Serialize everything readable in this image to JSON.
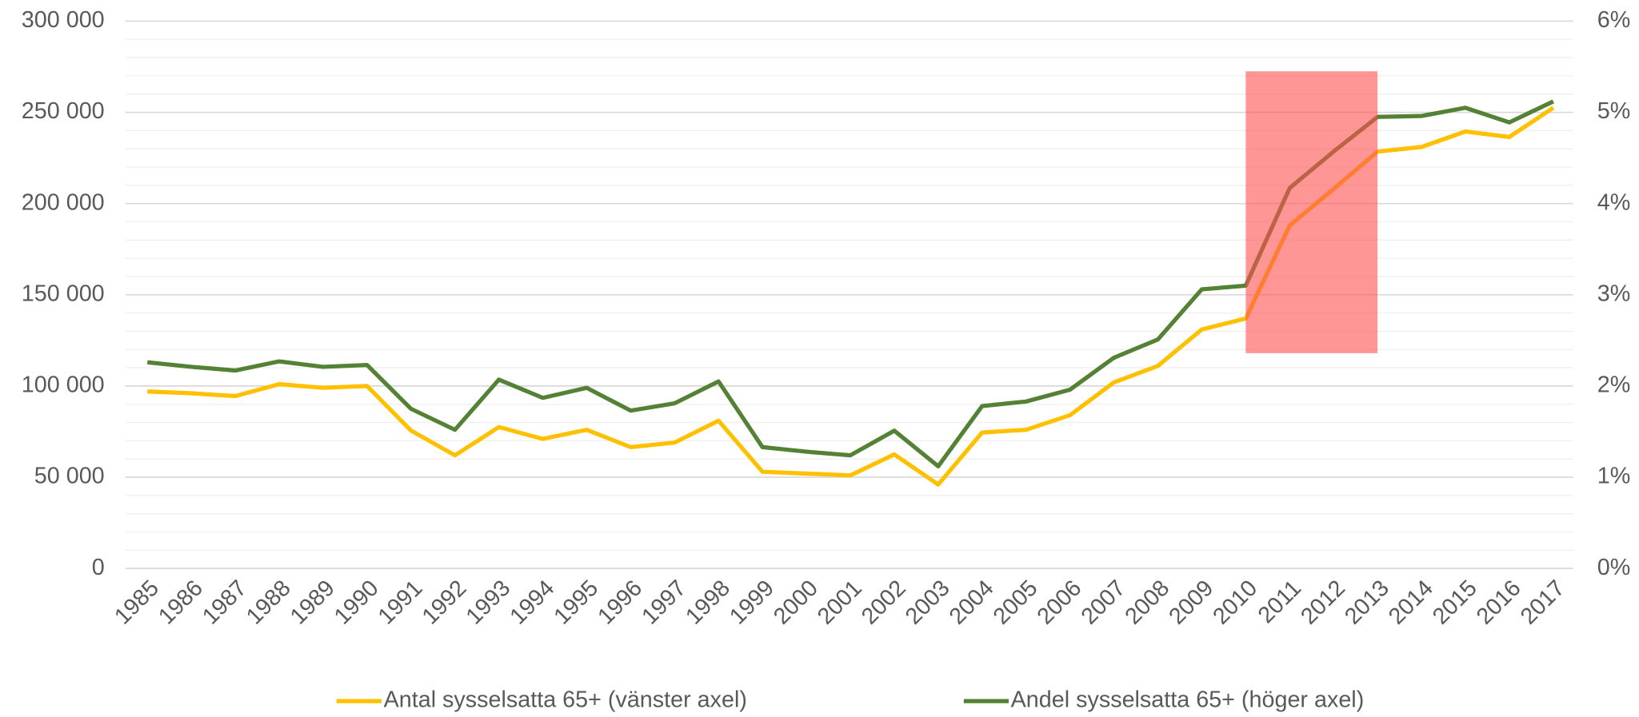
{
  "chart_data": {
    "type": "line",
    "categories": [
      "1985",
      "1986",
      "1987",
      "1988",
      "1989",
      "1990",
      "1991",
      "1992",
      "1993",
      "1994",
      "1995",
      "1996",
      "1997",
      "1998",
      "1999",
      "2000",
      "2001",
      "2002",
      "2003",
      "2004",
      "2005",
      "2006",
      "2007",
      "2008",
      "2009",
      "2010",
      "2011",
      "2012",
      "2013",
      "2014",
      "2015",
      "2016",
      "2017"
    ],
    "series": [
      {
        "name": "Antal sysselsatta 65+ (vänster axel)",
        "color": "#ffc000",
        "values": [
          97000,
          96000,
          94500,
          101000,
          99000,
          100000,
          75600,
          62000,
          77500,
          71000,
          76000,
          66500,
          69000,
          81000,
          53000,
          52000,
          51000,
          62500,
          46000,
          74500,
          76000,
          84000,
          102000,
          111000,
          131000,
          137000,
          188000,
          208000,
          228500,
          231000,
          239500,
          236500,
          252500
        ]
      },
      {
        "name": "Andel sysselsatta 65+ (höger axel)",
        "color": "#548235",
        "axis": "y2",
        "values": [
          2.26,
          2.21,
          2.17,
          2.27,
          2.21,
          2.23,
          1.75,
          1.52,
          2.07,
          1.87,
          1.98,
          1.73,
          1.81,
          2.05,
          1.33,
          1.28,
          1.24,
          1.51,
          1.12,
          1.78,
          1.83,
          1.96,
          2.31,
          2.51,
          3.06,
          3.1,
          4.17,
          4.57,
          4.95,
          4.96,
          5.05,
          4.89,
          5.12
        ]
      }
    ],
    "ylim": [
      0,
      300000
    ],
    "yticks": [
      0,
      {
        "value": 50000,
        "label": "50 000"
      },
      {
        "value": 100000,
        "label": "100 000"
      },
      {
        "value": 150000,
        "label": "150 000"
      },
      {
        "value": 200000,
        "label": "200 000"
      },
      {
        "value": 250000,
        "label": "250 000"
      },
      {
        "value": 300000,
        "label": "300 000"
      }
    ],
    "minor_yticks": [
      10000,
      20000,
      30000,
      40000,
      60000,
      70000,
      80000,
      90000,
      110000,
      120000,
      130000,
      140000,
      160000,
      170000,
      180000,
      190000,
      210000,
      220000,
      230000,
      240000,
      260000,
      270000,
      280000,
      290000
    ],
    "y2lim": [
      0,
      6
    ],
    "y2ticks": [
      {
        "value": 0,
        "label": "0%"
      },
      {
        "value": 1,
        "label": "1%"
      },
      {
        "value": 2,
        "label": "2%"
      },
      {
        "value": 3,
        "label": "3%"
      },
      {
        "value": 4,
        "label": "4%"
      },
      {
        "value": 5,
        "label": "5%"
      },
      {
        "value": 6,
        "label": "6%"
      }
    ],
    "grid": true,
    "legend": "bottom",
    "highlight": {
      "x": [
        "2010",
        "2013"
      ],
      "y": [
        118000,
        272500
      ],
      "color": "#ff5050"
    }
  }
}
